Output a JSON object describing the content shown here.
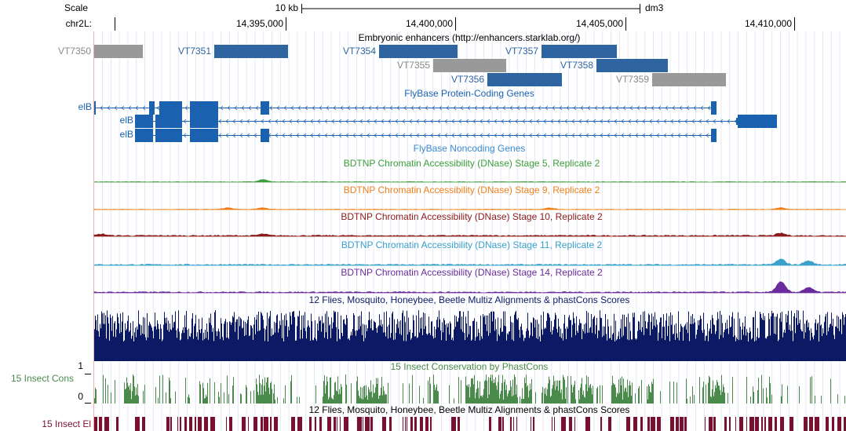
{
  "scale": {
    "label": "Scale",
    "chrom": "chr2L:",
    "span": "10 kb",
    "assembly": "dm3",
    "positions": [
      "14,395,000",
      "14,400,000",
      "14,405,000",
      "14,410,000"
    ]
  },
  "enhancers": {
    "title": "Embryonic enhancers (http://enhancers.starklab.org/)",
    "items": [
      "VT7350",
      "VT7351",
      "VT7354",
      "VT7355",
      "VT7357",
      "VT7358",
      "VT7356",
      "VT7359"
    ]
  },
  "genes": {
    "title": "FlyBase Protein-Coding Genes",
    "labels": [
      "elB",
      "elB",
      "elB"
    ]
  },
  "noncoding": {
    "title": "FlyBase Noncoding Genes"
  },
  "dnase": [
    {
      "title": "BDTNP Chromatin Accessibility (DNase) Stage 5, Replicate 2",
      "color": "#3a9e3a"
    },
    {
      "title": "BDTNP Chromatin Accessibility (DNase) Stage 9, Replicate 2",
      "color": "#f07f1a"
    },
    {
      "title": "BDTNP Chromatin Accessibility (DNase) Stage 10, Replicate 2",
      "color": "#8b1a1a"
    },
    {
      "title": "BDTNP Chromatin Accessibility (DNase) Stage 11, Replicate 2",
      "color": "#3aa0cc"
    },
    {
      "title": "BDTNP Chromatin Accessibility (DNase) Stage 14, Replicate 2",
      "color": "#6a2c9c"
    }
  ],
  "multiz": {
    "title": "12 Flies, Mosquito, Honeybee, Beetle Multiz Alignments & phastCons Scores",
    "color": "#0c1a66"
  },
  "phastcons": {
    "title": "15 Insect Conservation by PhastCons",
    "left_label": "15 Insect Cons",
    "max_label": "1",
    "min_label": "0",
    "color": "#4a8a4a"
  },
  "elements": {
    "title": "12 Flies, Mosquito, Honeybee, Beetle Multiz Alignments & phastCons Scores",
    "left_label": "15 Insect El",
    "color": "#7a1030"
  }
}
